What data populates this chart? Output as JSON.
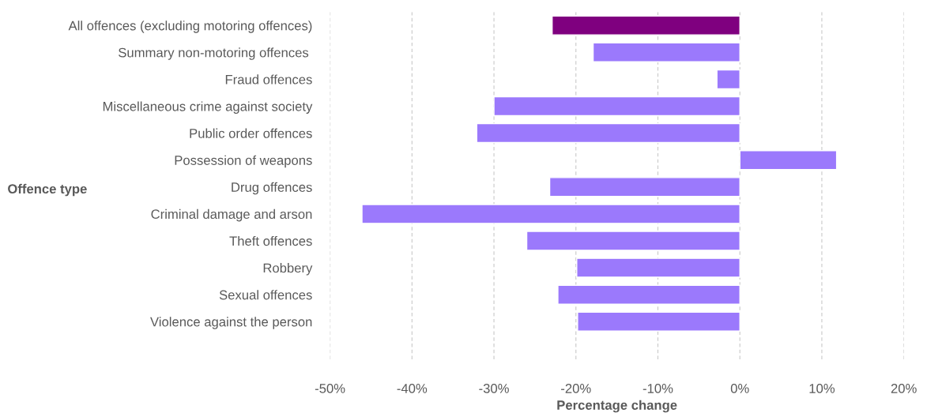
{
  "chart_data": {
    "type": "bar",
    "orientation": "horizontal",
    "xlabel": "Percentage change",
    "ylabel": "Offence type",
    "categories": [
      "All offences (excluding motoring offences)",
      "Summary non-motoring offences ",
      "Fraud offences",
      "Miscellaneous crime against society",
      "Public order offences",
      "Possession of weapons",
      "Drug offences",
      "Criminal damage and arson",
      "Theft offences",
      "Robbery",
      "Sexual offences",
      "Violence against the person"
    ],
    "values": [
      -22.9,
      -17.9,
      -2.8,
      -30.0,
      -32.1,
      11.8,
      -23.2,
      -46.1,
      -26.0,
      -19.9,
      -22.2,
      -19.8
    ],
    "colors": [
      "#7f007f",
      "#9b79fc",
      "#9b79fc",
      "#9b79fc",
      "#9b79fc",
      "#9b79fc",
      "#9b79fc",
      "#9b79fc",
      "#9b79fc",
      "#9b79fc",
      "#9b79fc",
      "#9b79fc"
    ],
    "xlim": [
      -50,
      20
    ],
    "xticks": [
      {
        "value": -50,
        "label": "-50%"
      },
      {
        "value": -40,
        "label": "-40%"
      },
      {
        "value": -30,
        "label": "-30%"
      },
      {
        "value": -20,
        "label": "-20%"
      },
      {
        "value": -10,
        "label": "-10%"
      },
      {
        "value": 0,
        "label": "0%"
      },
      {
        "value": 10,
        "label": "10%"
      },
      {
        "value": 20,
        "label": "20%"
      }
    ],
    "grid": "x",
    "legend": false
  }
}
